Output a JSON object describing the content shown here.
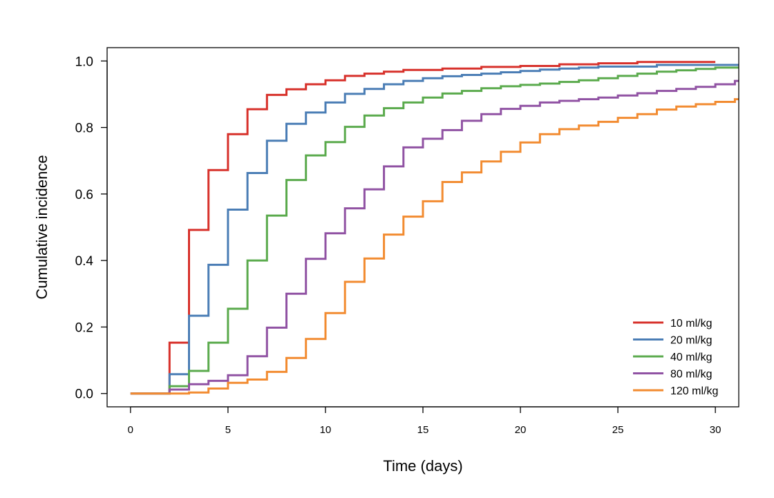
{
  "chart_data": {
    "type": "line",
    "step": true,
    "title": "",
    "xlabel": "Time (days)",
    "ylabel": "Cumulative incidence",
    "xlim": [
      -1.2,
      31.2
    ],
    "ylim": [
      -0.04,
      1.04
    ],
    "x_ticks": [
      0,
      5,
      10,
      15,
      20,
      25,
      30
    ],
    "x_tick_labels": [
      "0",
      "5",
      "10",
      "15",
      "20",
      "25",
      "30"
    ],
    "y_ticks": [
      0.0,
      0.2,
      0.4,
      0.6,
      0.8,
      1.0
    ],
    "y_tick_labels": [
      "0.0",
      "0.2",
      "0.4",
      "0.6",
      "0.8",
      "1.0"
    ],
    "legend_position": "bottom-right",
    "grid": false,
    "series": [
      {
        "name": "10 ml/kg",
        "color": "#d7302a",
        "end_x": 30,
        "x": [
          0,
          2,
          3,
          4,
          5,
          6,
          7,
          8,
          9,
          10,
          11,
          12,
          13,
          14,
          16,
          18,
          20,
          22,
          24,
          26
        ],
        "y": [
          0.0,
          0.153,
          0.492,
          0.672,
          0.78,
          0.855,
          0.898,
          0.915,
          0.93,
          0.942,
          0.955,
          0.962,
          0.968,
          0.973,
          0.977,
          0.982,
          0.985,
          0.99,
          0.993,
          0.997
        ]
      },
      {
        "name": "20 ml/kg",
        "color": "#4a7db5",
        "end_x": 31.2,
        "x": [
          0,
          2,
          3,
          4,
          5,
          6,
          7,
          8,
          9,
          10,
          11,
          12,
          13,
          14,
          15,
          16,
          17,
          18,
          19,
          20,
          21,
          22,
          23,
          24,
          27
        ],
        "y": [
          0.0,
          0.058,
          0.234,
          0.387,
          0.553,
          0.663,
          0.76,
          0.811,
          0.845,
          0.875,
          0.901,
          0.916,
          0.93,
          0.94,
          0.948,
          0.954,
          0.958,
          0.962,
          0.966,
          0.97,
          0.974,
          0.977,
          0.98,
          0.983,
          0.988
        ]
      },
      {
        "name": "40 ml/kg",
        "color": "#5aaa4c",
        "end_x": 31.2,
        "x": [
          0,
          2,
          3,
          4,
          5,
          6,
          7,
          8,
          9,
          10,
          11,
          12,
          13,
          14,
          15,
          16,
          17,
          18,
          19,
          20,
          21,
          22,
          23,
          24,
          25,
          26,
          27,
          28,
          29,
          30
        ],
        "y": [
          0.0,
          0.022,
          0.068,
          0.153,
          0.255,
          0.4,
          0.535,
          0.642,
          0.716,
          0.756,
          0.802,
          0.836,
          0.858,
          0.875,
          0.89,
          0.902,
          0.91,
          0.918,
          0.924,
          0.928,
          0.932,
          0.937,
          0.942,
          0.948,
          0.955,
          0.962,
          0.968,
          0.972,
          0.976,
          0.98
        ]
      },
      {
        "name": "80 ml/kg",
        "color": "#9052a3",
        "end_x": 31.2,
        "x": [
          0,
          2,
          3,
          4,
          5,
          6,
          7,
          8,
          9,
          10,
          11,
          12,
          13,
          14,
          15,
          16,
          17,
          18,
          19,
          20,
          21,
          22,
          23,
          24,
          25,
          26,
          27,
          28,
          29,
          30,
          31
        ],
        "y": [
          0.0,
          0.012,
          0.028,
          0.038,
          0.055,
          0.112,
          0.198,
          0.3,
          0.405,
          0.482,
          0.557,
          0.614,
          0.683,
          0.74,
          0.766,
          0.792,
          0.82,
          0.84,
          0.856,
          0.865,
          0.875,
          0.88,
          0.885,
          0.89,
          0.896,
          0.903,
          0.91,
          0.916,
          0.922,
          0.93,
          0.94
        ]
      },
      {
        "name": "120 ml/kg",
        "color": "#f28b30",
        "end_x": 31.2,
        "x": [
          0,
          3,
          4,
          5,
          6,
          7,
          8,
          9,
          10,
          11,
          12,
          13,
          14,
          15,
          16,
          17,
          18,
          19,
          20,
          21,
          22,
          23,
          24,
          25,
          26,
          27,
          28,
          29,
          30,
          31
        ],
        "y": [
          0.0,
          0.003,
          0.015,
          0.032,
          0.042,
          0.065,
          0.107,
          0.164,
          0.242,
          0.336,
          0.406,
          0.478,
          0.532,
          0.578,
          0.636,
          0.665,
          0.698,
          0.727,
          0.755,
          0.78,
          0.795,
          0.806,
          0.817,
          0.829,
          0.84,
          0.854,
          0.863,
          0.87,
          0.877,
          0.885
        ]
      }
    ]
  }
}
